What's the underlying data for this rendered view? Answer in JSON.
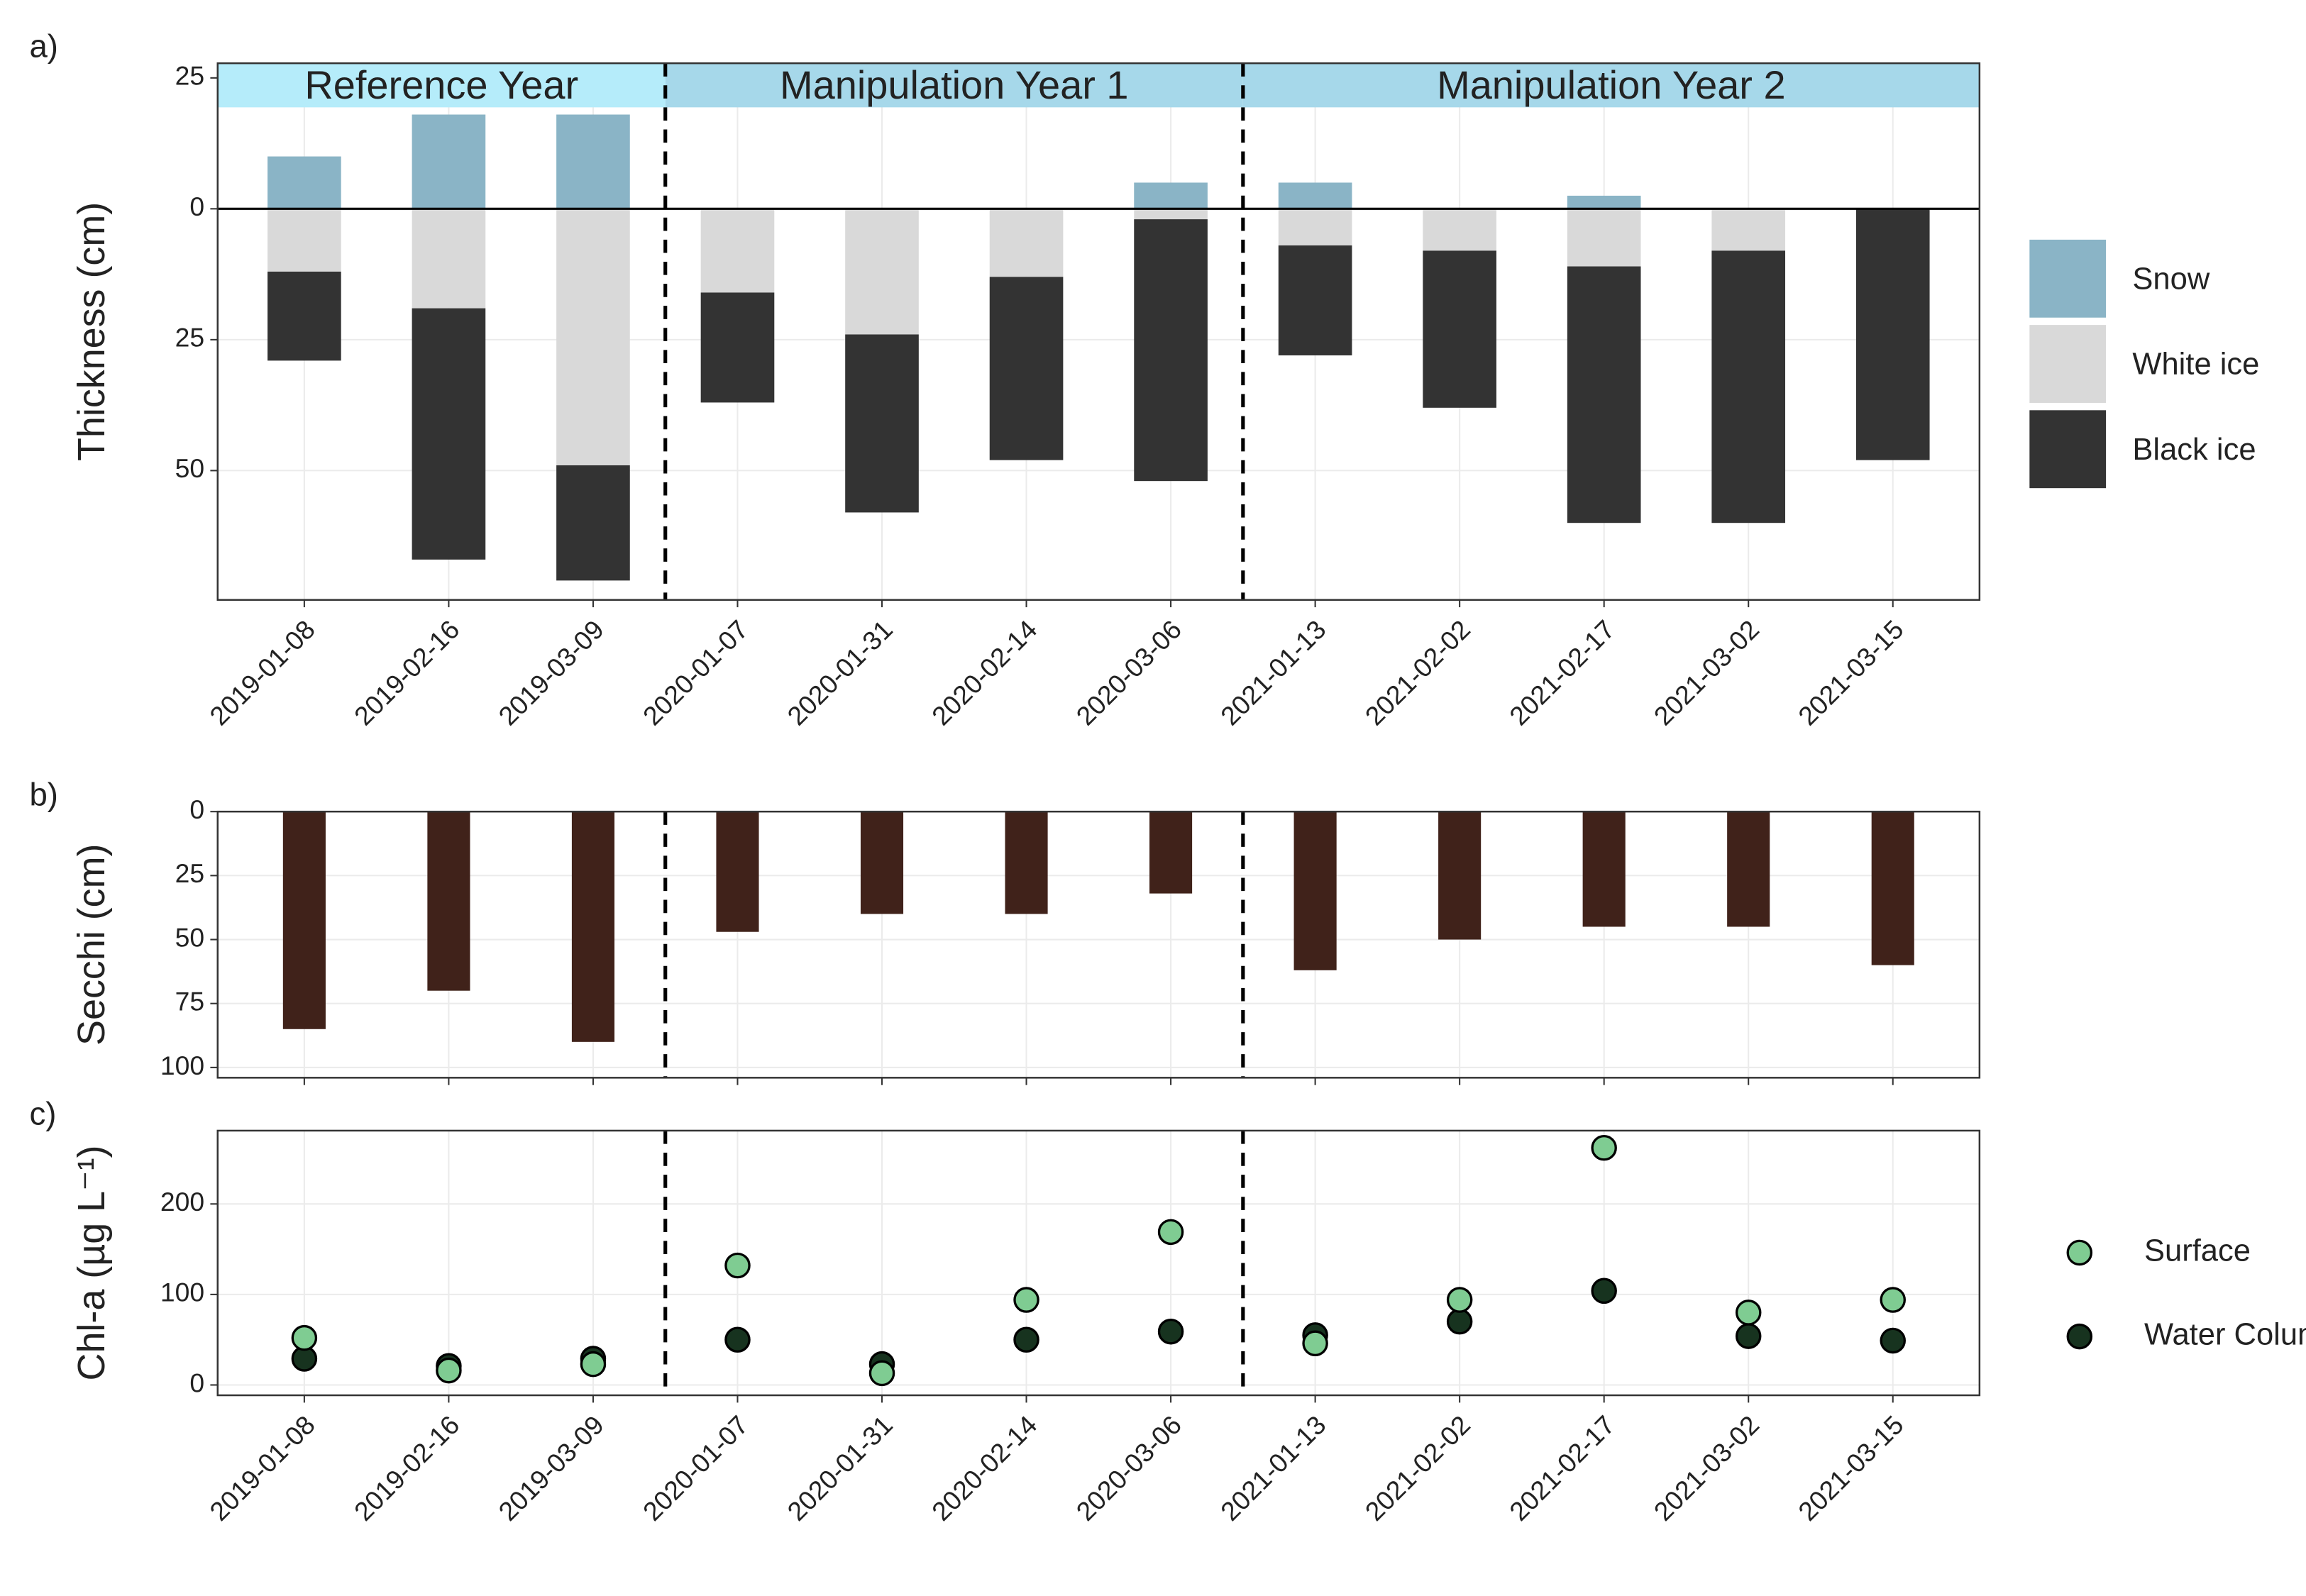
{
  "chart_data": [
    {
      "type": "stacked_bar",
      "label": "a)",
      "ylabel": "Thickness (cm)",
      "categories": [
        "2019-01-08",
        "2019-02-16",
        "2019-03-09",
        "2020-01-07",
        "2020-01-31",
        "2020-02-14",
        "2020-03-06",
        "2021-01-13",
        "2021-02-02",
        "2021-02-17",
        "2021-03-02",
        "2021-03-15"
      ],
      "series": [
        {
          "name": "Snow",
          "color": "#8ab4c6",
          "values": [
            10,
            18,
            18,
            0,
            0,
            0,
            5,
            5,
            0,
            2.5,
            0,
            0
          ]
        },
        {
          "name": "White ice",
          "color": "#d9d9d9",
          "values": [
            -12,
            -19,
            -49,
            -16,
            -24,
            -13,
            -2,
            -7,
            -8,
            -11,
            -8,
            0
          ]
        },
        {
          "name": "Black ice",
          "color": "#333333",
          "values": [
            -17,
            -48,
            -22,
            -21,
            -34,
            -35,
            -50,
            -21,
            -30,
            -49,
            -52,
            -48
          ]
        }
      ],
      "ylim": [
        -74.7,
        27.8
      ],
      "yticks": [
        {
          "value": -50,
          "label": "50"
        },
        {
          "value": -25,
          "label": "25"
        },
        0,
        25
      ],
      "periods": [
        {
          "text": "Reference Year",
          "from": "2019-01-08",
          "to": "2019-03-09",
          "color": "#b5ecfa"
        },
        {
          "text": "Manipulation Year 1",
          "from": "2020-01-07",
          "to": "2020-03-06",
          "color": "#a6d8ea"
        },
        {
          "text": "Manipulation Year 2",
          "from": "2021-01-13",
          "to": "2021-03-15",
          "color": "#a6d8ea"
        }
      ],
      "grid": true,
      "legend": "right"
    },
    {
      "type": "bar",
      "label": "b)",
      "ylabel": "Secchi (cm)",
      "values": [
        85,
        70,
        90,
        47,
        40,
        40,
        32,
        62,
        50,
        45,
        45,
        60
      ],
      "color": "#40221a",
      "ylim": [
        0,
        104
      ],
      "yticks": [
        0,
        25,
        50,
        75,
        100
      ],
      "y_reversed": true,
      "grid": true
    },
    {
      "type": "scatter",
      "label": "c)",
      "ylabel": "Chl-a (µg L⁻¹)",
      "categories": [
        "2019-01-08",
        "2019-02-16",
        "2019-03-09",
        "2020-01-07",
        "2020-01-31",
        "2020-02-14",
        "2020-03-06",
        "2021-01-13",
        "2021-02-02",
        "2021-02-17",
        "2021-03-02",
        "2021-03-15"
      ],
      "series": [
        {
          "name": "Water Column",
          "color": "#17331f",
          "values": [
            29,
            21,
            29,
            50,
            23,
            50,
            59,
            55,
            70,
            104,
            54,
            49
          ]
        },
        {
          "name": "Surface",
          "color": "#7fcc92",
          "values": [
            52,
            16,
            23,
            132,
            13,
            94,
            169,
            46,
            94,
            262,
            80,
            94
          ]
        }
      ],
      "ylim": [
        -11.4,
        281
      ],
      "yticks": [
        0,
        100,
        200
      ],
      "grid": true,
      "legend": "right"
    }
  ]
}
